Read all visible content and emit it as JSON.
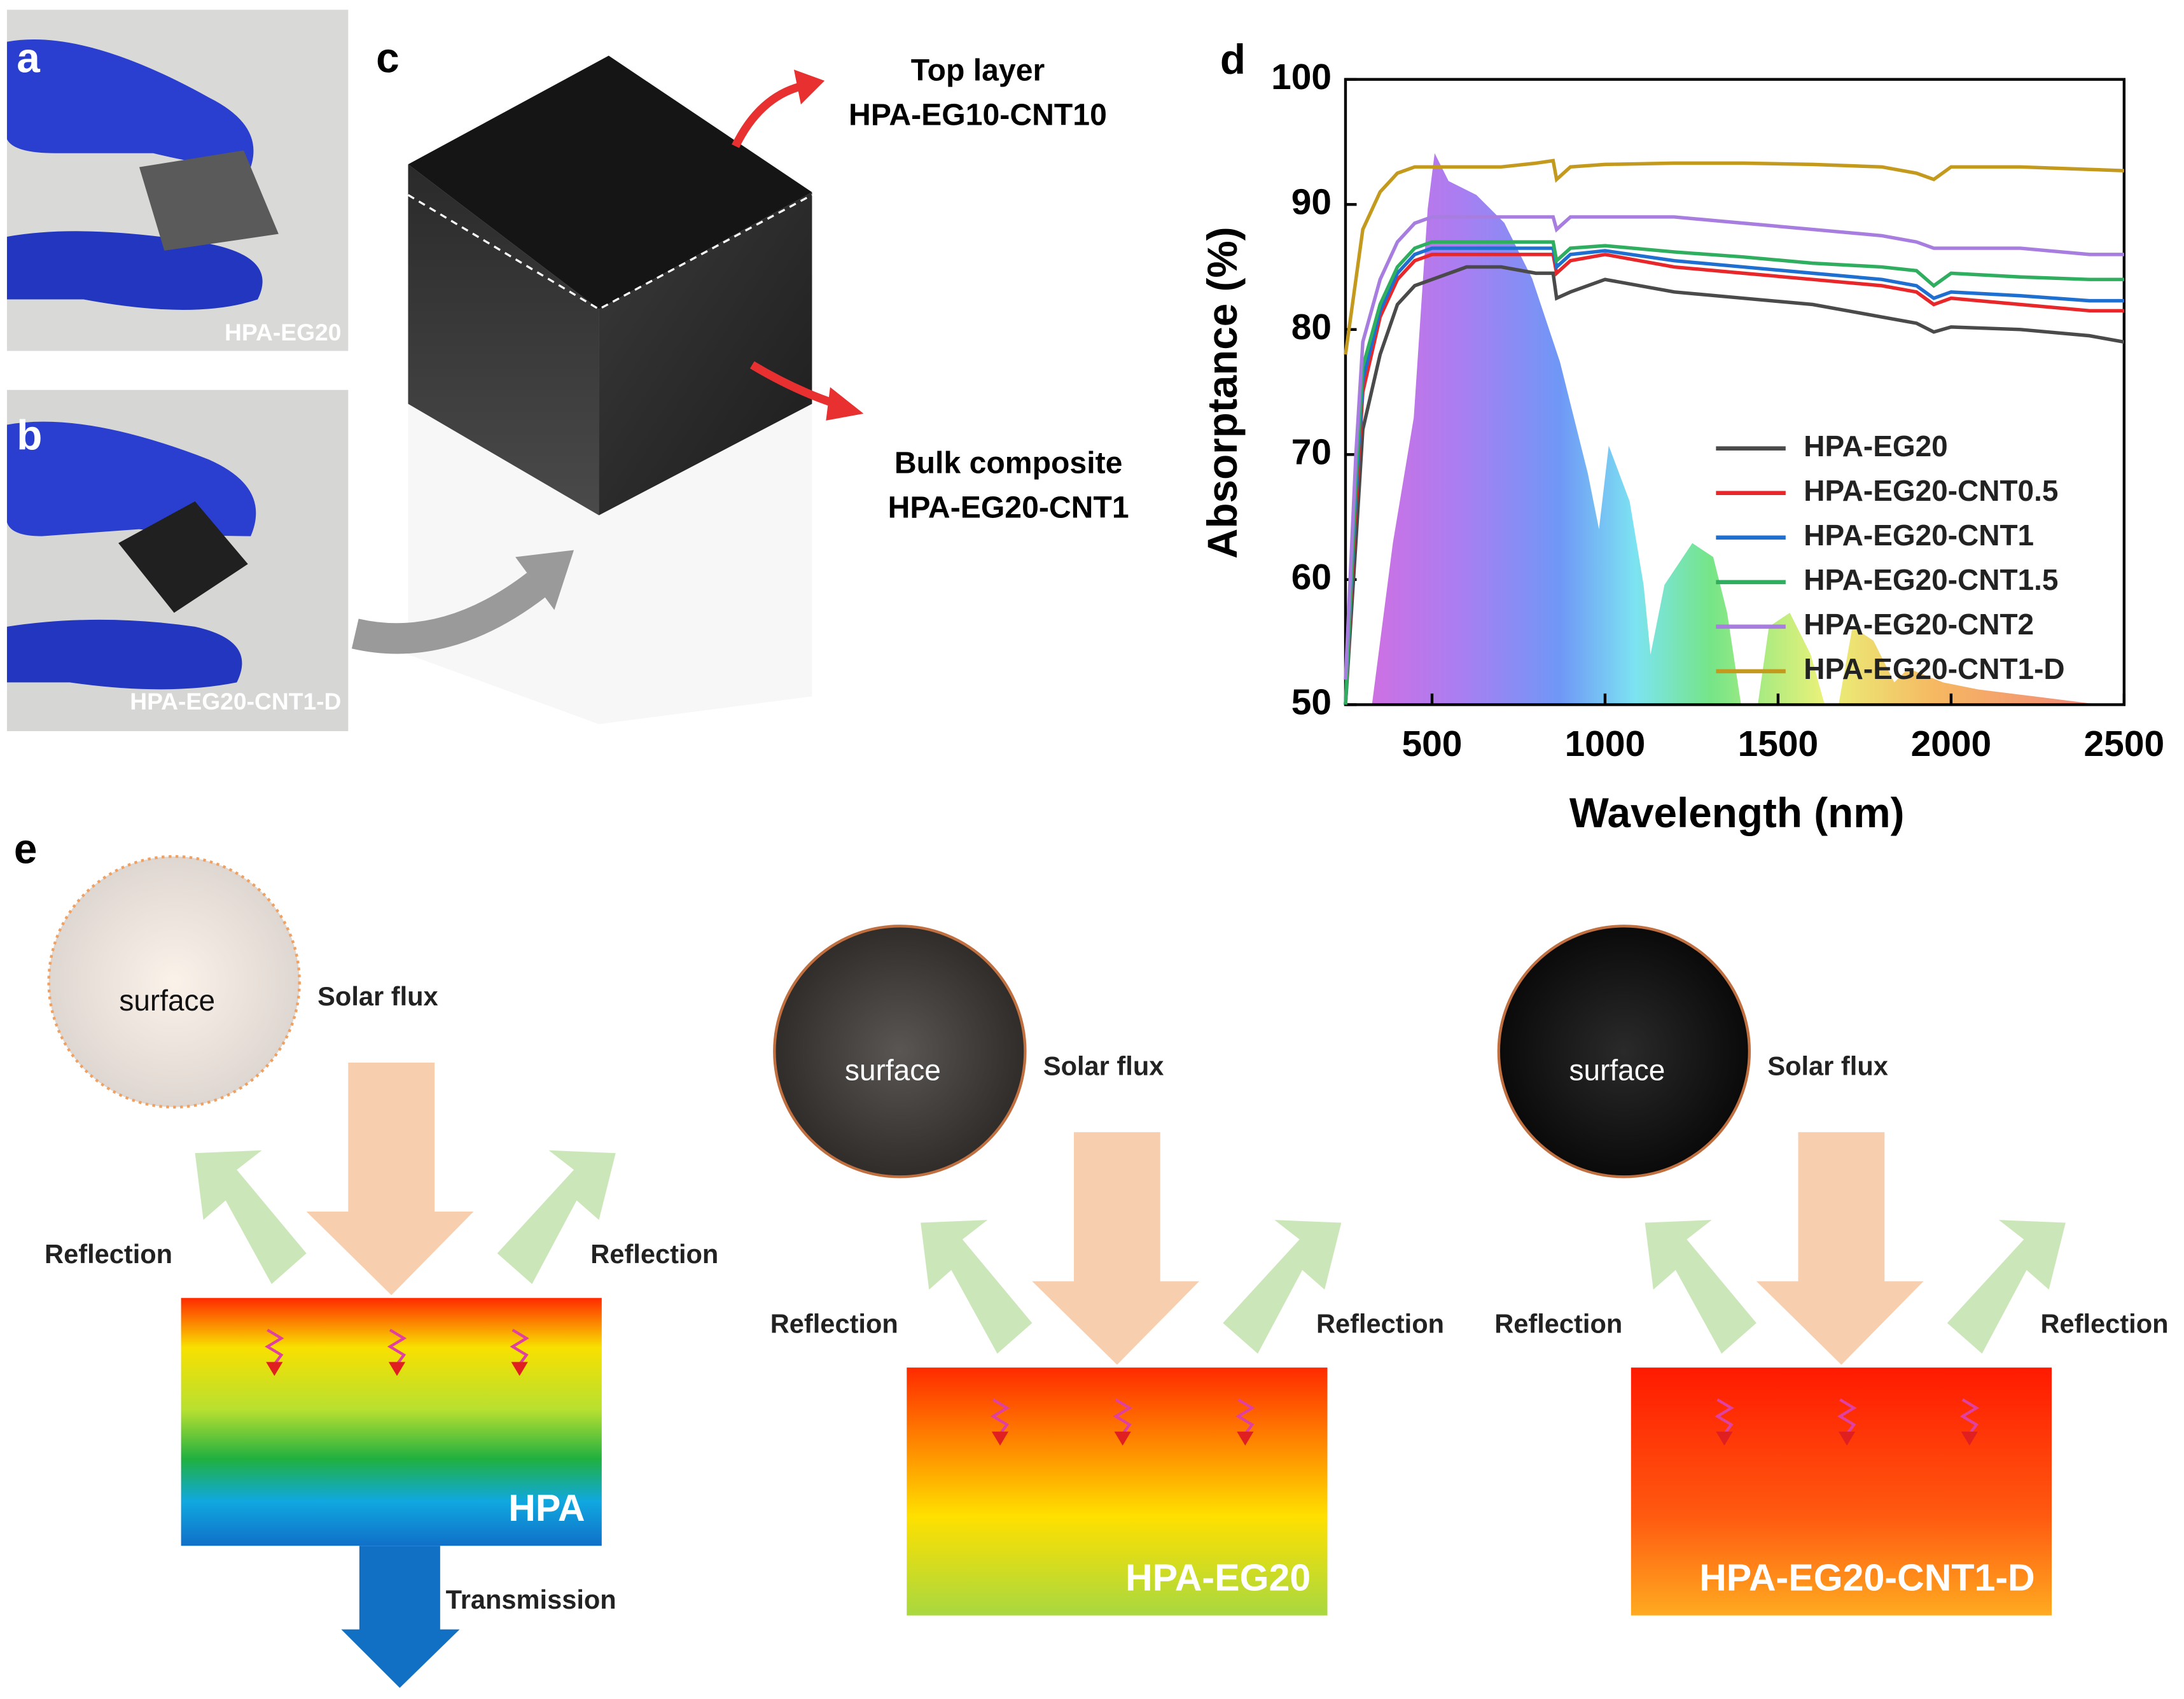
{
  "panels": {
    "a": {
      "label": "a",
      "caption": "HPA-EG20"
    },
    "b": {
      "label": "b",
      "caption": "HPA-EG20-CNT1-D"
    },
    "c": {
      "label": "c",
      "top_layer": "Top layer",
      "top_material": "HPA-EG10-CNT10",
      "bulk": "Bulk composite",
      "bulk_material": "HPA-EG20-CNT1"
    },
    "e": {
      "label": "e",
      "columns": [
        {
          "surface": "surface",
          "flux": "Solar flux",
          "reflection_left": "Reflection",
          "reflection_right": "Reflection",
          "material": "HPA",
          "transmission": "Transmission"
        },
        {
          "surface": "surface",
          "flux": "Solar flux",
          "reflection_left": "Reflection",
          "reflection_right": "Reflection",
          "material": "HPA-EG20"
        },
        {
          "surface": "surface",
          "flux": "Solar flux",
          "reflection_left": "Reflection",
          "reflection_right": "Reflection",
          "material": "HPA-EG20-CNT1-D"
        }
      ]
    }
  },
  "chart_data": {
    "type": "line",
    "panel_label": "d",
    "x_label": "Wavelength (nm)",
    "y_label": "Absorptance (%)",
    "x": [
      250,
      280,
      300,
      350,
      400,
      450,
      500,
      600,
      700,
      800,
      850,
      860,
      900,
      1000,
      1200,
      1400,
      1600,
      1800,
      1900,
      1950,
      2000,
      2200,
      2400,
      2500
    ],
    "series": [
      {
        "name": "HPA-EG20",
        "color": "#4a4a4a",
        "values": [
          50,
          63,
          72,
          78,
          82,
          83.5,
          84,
          85,
          85,
          84.5,
          84.5,
          82.5,
          83,
          84,
          83,
          82.5,
          82,
          81,
          80.5,
          79.8,
          80.2,
          80,
          79.5,
          79
        ]
      },
      {
        "name": "HPA-EG20-CNT0.5",
        "color": "#e8272a",
        "values": [
          50,
          66,
          75,
          81,
          84,
          85.5,
          86,
          86,
          86,
          86,
          86,
          84.5,
          85.5,
          86,
          85,
          84.5,
          84,
          83.5,
          83,
          82,
          82.5,
          82,
          81.5,
          81.5
        ]
      },
      {
        "name": "HPA-EG20-CNT1",
        "color": "#1f6fd1",
        "values": [
          50,
          67,
          76,
          81.5,
          84.5,
          86,
          86.5,
          86.5,
          86.5,
          86.5,
          86.5,
          85,
          86,
          86.3,
          85.5,
          85,
          84.5,
          84,
          83.5,
          82.5,
          83,
          82.7,
          82.3,
          82.3
        ]
      },
      {
        "name": "HPA-EG20-CNT1.5",
        "color": "#2fae5f",
        "values": [
          50,
          68,
          77,
          82,
          85,
          86.5,
          87,
          87,
          87,
          87,
          87,
          85.5,
          86.5,
          86.7,
          86.2,
          85.8,
          85.3,
          85,
          84.7,
          83.5,
          84.5,
          84.2,
          84,
          84
        ]
      },
      {
        "name": "HPA-EG20-CNT2",
        "color": "#a77de0",
        "values": [
          52,
          70,
          79,
          84,
          87,
          88.5,
          89,
          89,
          89,
          89,
          89,
          88,
          89,
          89,
          89,
          88.5,
          88,
          87.5,
          87,
          86.5,
          86.5,
          86.5,
          86,
          86
        ]
      },
      {
        "name": "HPA-EG20-CNT1-D",
        "color": "#c49a1e",
        "values": [
          78,
          84,
          88,
          91,
          92.5,
          93,
          93,
          93,
          93,
          93.3,
          93.5,
          92,
          93,
          93.2,
          93.3,
          93.3,
          93.2,
          93,
          92.5,
          92,
          93,
          93,
          92.8,
          92.7
        ]
      }
    ],
    "xlim": [
      250,
      2500
    ],
    "xticks": [
      500,
      1000,
      1500,
      2000,
      2500
    ],
    "ylim": [
      50,
      100
    ],
    "yticks": [
      50,
      60,
      70,
      80,
      90,
      100
    ]
  }
}
